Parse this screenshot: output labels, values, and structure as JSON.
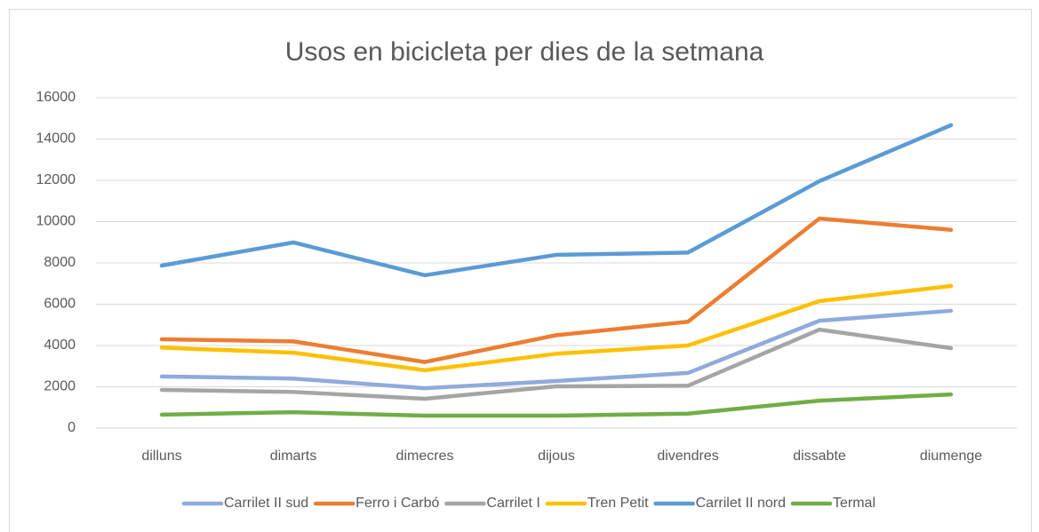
{
  "chart_data": {
    "type": "line",
    "title": "Usos en bicicleta per dies de la setmana",
    "categories": [
      "dilluns",
      "dimarts",
      "dimecres",
      "dijous",
      "divendres",
      "dissabte",
      "diumenge"
    ],
    "series": [
      {
        "name": "Carrilet II sud",
        "color": "#8faadc",
        "values": [
          2500,
          2400,
          1930,
          2280,
          2670,
          5200,
          5680
        ]
      },
      {
        "name": "Ferro i Carbó",
        "color": "#ed7d31",
        "values": [
          4300,
          4200,
          3200,
          4500,
          5150,
          10150,
          9600
        ]
      },
      {
        "name": "Carrilet I",
        "color": "#a5a5a5",
        "values": [
          1850,
          1750,
          1420,
          2020,
          2050,
          4770,
          3870
        ]
      },
      {
        "name": "Tren Petit",
        "color": "#ffc000",
        "values": [
          3900,
          3650,
          2800,
          3600,
          4000,
          6150,
          6880
        ]
      },
      {
        "name": "Carrilet II nord",
        "color": "#5b9bd5",
        "values": [
          7870,
          8990,
          7400,
          8390,
          8500,
          11960,
          14670
        ]
      },
      {
        "name": "Termal",
        "color": "#70ad47",
        "values": [
          650,
          770,
          600,
          600,
          700,
          1330,
          1630
        ]
      }
    ],
    "ylim": [
      0,
      16000
    ],
    "yticks": [
      0,
      2000,
      4000,
      6000,
      8000,
      10000,
      12000,
      14000,
      16000
    ],
    "grid": true,
    "legend": "bottom"
  }
}
